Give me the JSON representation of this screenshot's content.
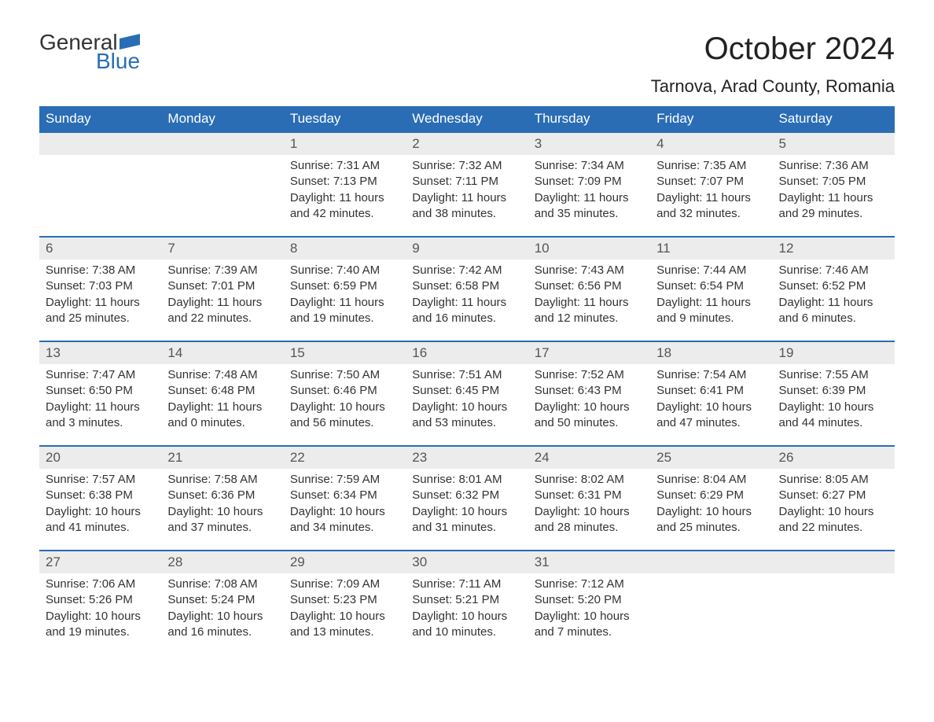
{
  "logo": {
    "text_general": "General",
    "text_blue": "Blue",
    "color_general": "#333333",
    "color_blue": "#2a6db5"
  },
  "title": "October 2024",
  "location": "Tarnova, Arad County, Romania",
  "styling": {
    "header_bg": "#2a6db5",
    "header_text_color": "#ffffff",
    "daynum_bg": "#ececec",
    "daynum_text_color": "#555555",
    "body_text_color": "#333333",
    "row_separator_color": "#2a6db5",
    "background": "#ffffff",
    "month_title_fontsize": 40,
    "location_fontsize": 22,
    "header_fontsize": 17,
    "daynum_fontsize": 17,
    "cell_fontsize": 15
  },
  "weekdays": [
    "Sunday",
    "Monday",
    "Tuesday",
    "Wednesday",
    "Thursday",
    "Friday",
    "Saturday"
  ],
  "weeks": [
    [
      null,
      null,
      {
        "n": "1",
        "sr": "Sunrise: 7:31 AM",
        "ss": "Sunset: 7:13 PM",
        "dl1": "Daylight: 11 hours",
        "dl2": "and 42 minutes."
      },
      {
        "n": "2",
        "sr": "Sunrise: 7:32 AM",
        "ss": "Sunset: 7:11 PM",
        "dl1": "Daylight: 11 hours",
        "dl2": "and 38 minutes."
      },
      {
        "n": "3",
        "sr": "Sunrise: 7:34 AM",
        "ss": "Sunset: 7:09 PM",
        "dl1": "Daylight: 11 hours",
        "dl2": "and 35 minutes."
      },
      {
        "n": "4",
        "sr": "Sunrise: 7:35 AM",
        "ss": "Sunset: 7:07 PM",
        "dl1": "Daylight: 11 hours",
        "dl2": "and 32 minutes."
      },
      {
        "n": "5",
        "sr": "Sunrise: 7:36 AM",
        "ss": "Sunset: 7:05 PM",
        "dl1": "Daylight: 11 hours",
        "dl2": "and 29 minutes."
      }
    ],
    [
      {
        "n": "6",
        "sr": "Sunrise: 7:38 AM",
        "ss": "Sunset: 7:03 PM",
        "dl1": "Daylight: 11 hours",
        "dl2": "and 25 minutes."
      },
      {
        "n": "7",
        "sr": "Sunrise: 7:39 AM",
        "ss": "Sunset: 7:01 PM",
        "dl1": "Daylight: 11 hours",
        "dl2": "and 22 minutes."
      },
      {
        "n": "8",
        "sr": "Sunrise: 7:40 AM",
        "ss": "Sunset: 6:59 PM",
        "dl1": "Daylight: 11 hours",
        "dl2": "and 19 minutes."
      },
      {
        "n": "9",
        "sr": "Sunrise: 7:42 AM",
        "ss": "Sunset: 6:58 PM",
        "dl1": "Daylight: 11 hours",
        "dl2": "and 16 minutes."
      },
      {
        "n": "10",
        "sr": "Sunrise: 7:43 AM",
        "ss": "Sunset: 6:56 PM",
        "dl1": "Daylight: 11 hours",
        "dl2": "and 12 minutes."
      },
      {
        "n": "11",
        "sr": "Sunrise: 7:44 AM",
        "ss": "Sunset: 6:54 PM",
        "dl1": "Daylight: 11 hours",
        "dl2": "and 9 minutes."
      },
      {
        "n": "12",
        "sr": "Sunrise: 7:46 AM",
        "ss": "Sunset: 6:52 PM",
        "dl1": "Daylight: 11 hours",
        "dl2": "and 6 minutes."
      }
    ],
    [
      {
        "n": "13",
        "sr": "Sunrise: 7:47 AM",
        "ss": "Sunset: 6:50 PM",
        "dl1": "Daylight: 11 hours",
        "dl2": "and 3 minutes."
      },
      {
        "n": "14",
        "sr": "Sunrise: 7:48 AM",
        "ss": "Sunset: 6:48 PM",
        "dl1": "Daylight: 11 hours",
        "dl2": "and 0 minutes."
      },
      {
        "n": "15",
        "sr": "Sunrise: 7:50 AM",
        "ss": "Sunset: 6:46 PM",
        "dl1": "Daylight: 10 hours",
        "dl2": "and 56 minutes."
      },
      {
        "n": "16",
        "sr": "Sunrise: 7:51 AM",
        "ss": "Sunset: 6:45 PM",
        "dl1": "Daylight: 10 hours",
        "dl2": "and 53 minutes."
      },
      {
        "n": "17",
        "sr": "Sunrise: 7:52 AM",
        "ss": "Sunset: 6:43 PM",
        "dl1": "Daylight: 10 hours",
        "dl2": "and 50 minutes."
      },
      {
        "n": "18",
        "sr": "Sunrise: 7:54 AM",
        "ss": "Sunset: 6:41 PM",
        "dl1": "Daylight: 10 hours",
        "dl2": "and 47 minutes."
      },
      {
        "n": "19",
        "sr": "Sunrise: 7:55 AM",
        "ss": "Sunset: 6:39 PM",
        "dl1": "Daylight: 10 hours",
        "dl2": "and 44 minutes."
      }
    ],
    [
      {
        "n": "20",
        "sr": "Sunrise: 7:57 AM",
        "ss": "Sunset: 6:38 PM",
        "dl1": "Daylight: 10 hours",
        "dl2": "and 41 minutes."
      },
      {
        "n": "21",
        "sr": "Sunrise: 7:58 AM",
        "ss": "Sunset: 6:36 PM",
        "dl1": "Daylight: 10 hours",
        "dl2": "and 37 minutes."
      },
      {
        "n": "22",
        "sr": "Sunrise: 7:59 AM",
        "ss": "Sunset: 6:34 PM",
        "dl1": "Daylight: 10 hours",
        "dl2": "and 34 minutes."
      },
      {
        "n": "23",
        "sr": "Sunrise: 8:01 AM",
        "ss": "Sunset: 6:32 PM",
        "dl1": "Daylight: 10 hours",
        "dl2": "and 31 minutes."
      },
      {
        "n": "24",
        "sr": "Sunrise: 8:02 AM",
        "ss": "Sunset: 6:31 PM",
        "dl1": "Daylight: 10 hours",
        "dl2": "and 28 minutes."
      },
      {
        "n": "25",
        "sr": "Sunrise: 8:04 AM",
        "ss": "Sunset: 6:29 PM",
        "dl1": "Daylight: 10 hours",
        "dl2": "and 25 minutes."
      },
      {
        "n": "26",
        "sr": "Sunrise: 8:05 AM",
        "ss": "Sunset: 6:27 PM",
        "dl1": "Daylight: 10 hours",
        "dl2": "and 22 minutes."
      }
    ],
    [
      {
        "n": "27",
        "sr": "Sunrise: 7:06 AM",
        "ss": "Sunset: 5:26 PM",
        "dl1": "Daylight: 10 hours",
        "dl2": "and 19 minutes."
      },
      {
        "n": "28",
        "sr": "Sunrise: 7:08 AM",
        "ss": "Sunset: 5:24 PM",
        "dl1": "Daylight: 10 hours",
        "dl2": "and 16 minutes."
      },
      {
        "n": "29",
        "sr": "Sunrise: 7:09 AM",
        "ss": "Sunset: 5:23 PM",
        "dl1": "Daylight: 10 hours",
        "dl2": "and 13 minutes."
      },
      {
        "n": "30",
        "sr": "Sunrise: 7:11 AM",
        "ss": "Sunset: 5:21 PM",
        "dl1": "Daylight: 10 hours",
        "dl2": "and 10 minutes."
      },
      {
        "n": "31",
        "sr": "Sunrise: 7:12 AM",
        "ss": "Sunset: 5:20 PM",
        "dl1": "Daylight: 10 hours",
        "dl2": "and 7 minutes."
      },
      null,
      null
    ]
  ]
}
